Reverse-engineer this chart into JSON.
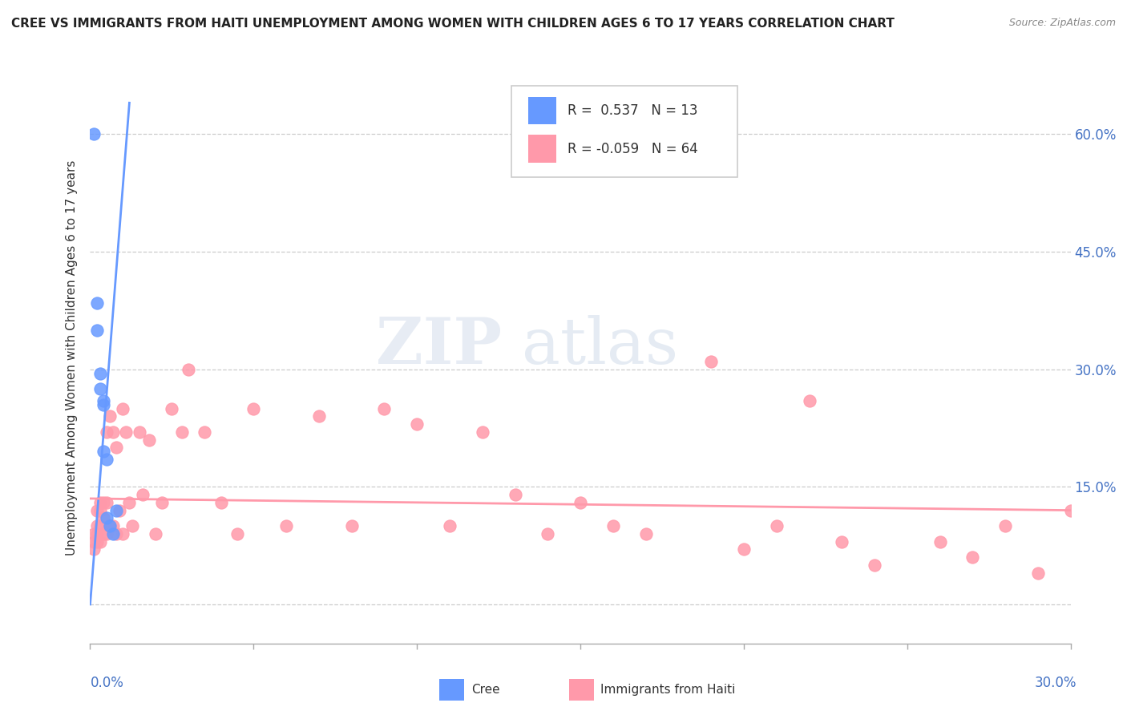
{
  "title": "CREE VS IMMIGRANTS FROM HAITI UNEMPLOYMENT AMONG WOMEN WITH CHILDREN AGES 6 TO 17 YEARS CORRELATION CHART",
  "source": "Source: ZipAtlas.com",
  "ylabel": "Unemployment Among Women with Children Ages 6 to 17 years",
  "ytick_values": [
    0.0,
    0.15,
    0.3,
    0.45,
    0.6
  ],
  "ytick_labels": [
    "",
    "15.0%",
    "30.0%",
    "45.0%",
    "60.0%"
  ],
  "xlim": [
    0.0,
    0.3
  ],
  "ylim": [
    -0.05,
    0.68
  ],
  "cree_color": "#6699ff",
  "haiti_color": "#ff99aa",
  "cree_R": 0.537,
  "cree_N": 13,
  "haiti_R": -0.059,
  "haiti_N": 64,
  "background_color": "#ffffff",
  "grid_color": "#cccccc",
  "cree_line_x": [
    0.0,
    0.012
  ],
  "cree_line_y": [
    0.0,
    0.64
  ],
  "haiti_line_x": [
    0.0,
    0.3
  ],
  "haiti_line_y": [
    0.135,
    0.12
  ],
  "cree_points_x": [
    0.001,
    0.002,
    0.002,
    0.003,
    0.003,
    0.004,
    0.004,
    0.004,
    0.005,
    0.005,
    0.006,
    0.007,
    0.008
  ],
  "cree_points_y": [
    0.6,
    0.385,
    0.35,
    0.295,
    0.275,
    0.26,
    0.255,
    0.195,
    0.185,
    0.11,
    0.1,
    0.09,
    0.12
  ],
  "haiti_points_x": [
    0.001,
    0.001,
    0.001,
    0.002,
    0.002,
    0.002,
    0.002,
    0.003,
    0.003,
    0.003,
    0.003,
    0.004,
    0.004,
    0.004,
    0.005,
    0.005,
    0.005,
    0.006,
    0.006,
    0.007,
    0.007,
    0.008,
    0.008,
    0.009,
    0.01,
    0.01,
    0.011,
    0.012,
    0.013,
    0.015,
    0.016,
    0.018,
    0.02,
    0.022,
    0.025,
    0.028,
    0.03,
    0.035,
    0.04,
    0.045,
    0.05,
    0.06,
    0.07,
    0.08,
    0.09,
    0.1,
    0.11,
    0.12,
    0.13,
    0.14,
    0.15,
    0.16,
    0.17,
    0.19,
    0.2,
    0.21,
    0.22,
    0.23,
    0.24,
    0.26,
    0.27,
    0.28,
    0.29,
    0.3
  ],
  "haiti_points_y": [
    0.09,
    0.08,
    0.07,
    0.12,
    0.1,
    0.09,
    0.08,
    0.13,
    0.12,
    0.1,
    0.08,
    0.13,
    0.11,
    0.09,
    0.22,
    0.13,
    0.09,
    0.24,
    0.1,
    0.22,
    0.1,
    0.2,
    0.09,
    0.12,
    0.25,
    0.09,
    0.22,
    0.13,
    0.1,
    0.22,
    0.14,
    0.21,
    0.09,
    0.13,
    0.25,
    0.22,
    0.3,
    0.22,
    0.13,
    0.09,
    0.25,
    0.1,
    0.24,
    0.1,
    0.25,
    0.23,
    0.1,
    0.22,
    0.14,
    0.09,
    0.13,
    0.1,
    0.09,
    0.31,
    0.07,
    0.1,
    0.26,
    0.08,
    0.05,
    0.08,
    0.06,
    0.1,
    0.04,
    0.12
  ]
}
